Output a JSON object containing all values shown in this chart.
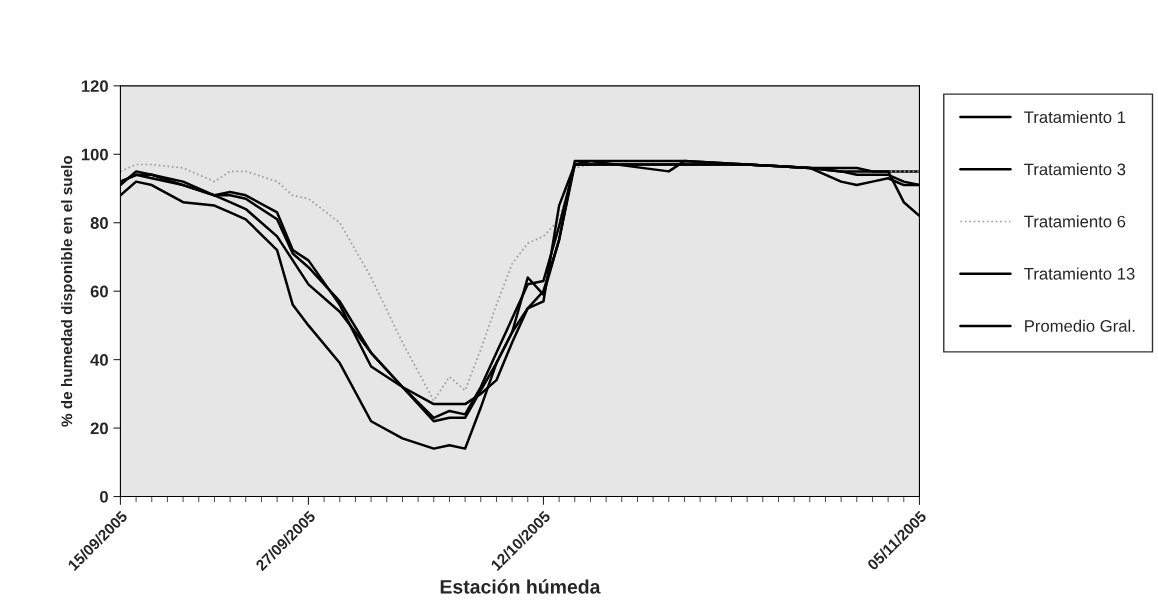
{
  "chart_data": {
    "type": "line",
    "xlabel": "Estación húmeda",
    "ylabel": "% de humedad disponible en el suelo",
    "x": [
      "2005-09-15",
      "2005-09-16",
      "2005-09-17",
      "2005-09-19",
      "2005-09-21",
      "2005-09-22",
      "2005-09-23",
      "2005-09-25",
      "2005-09-26",
      "2005-09-27",
      "2005-09-29",
      "2005-10-01",
      "2005-10-03",
      "2005-10-05",
      "2005-10-06",
      "2005-10-07",
      "2005-10-08",
      "2005-10-09",
      "2005-10-10",
      "2005-10-11",
      "2005-10-12",
      "2005-10-13",
      "2005-10-14",
      "2005-10-15",
      "2005-10-20",
      "2005-10-21",
      "2005-10-25",
      "2005-10-29",
      "2005-10-31",
      "2005-11-01",
      "2005-11-02",
      "2005-11-03",
      "2005-11-04",
      "2005-11-05"
    ],
    "series": [
      {
        "name": "Tratamiento 1",
        "color": "#000000",
        "line_style": "solid",
        "values": [
          91,
          95,
          94,
          92,
          88,
          89,
          88,
          83,
          72,
          69,
          56,
          38,
          32,
          27,
          27,
          27,
          30,
          34,
          45,
          55,
          60,
          75,
          97,
          98,
          98,
          98,
          97,
          96,
          95,
          95,
          95,
          95,
          95,
          95
        ]
      },
      {
        "name": "Tratamiento 3",
        "color": "#000000",
        "line_style": "solid",
        "values": [
          92,
          94,
          93,
          91,
          88,
          86,
          84,
          76,
          69,
          62,
          54,
          42,
          32,
          22,
          23,
          23,
          31,
          39,
          48,
          64,
          59,
          75,
          98,
          98,
          95,
          98,
          97,
          96,
          92,
          91,
          92,
          93,
          91,
          91
        ]
      },
      {
        "name": "Tratamiento 6",
        "color": "#9a9a9a",
        "line_style": "dotted",
        "values": [
          95,
          97,
          97,
          96,
          92,
          95,
          95,
          92,
          88,
          87,
          80,
          64,
          45,
          28,
          35,
          31,
          43,
          56,
          68,
          74,
          76,
          81,
          96,
          97,
          97,
          97,
          97,
          96,
          96,
          96,
          95,
          95,
          95,
          95
        ]
      },
      {
        "name": "Tratamiento 13",
        "color": "#000000",
        "line_style": "solid",
        "values": [
          88,
          92,
          91,
          86,
          85,
          83,
          81,
          72,
          56,
          50,
          39,
          22,
          17,
          14,
          15,
          14,
          26,
          39,
          48,
          55,
          57,
          85,
          97,
          97,
          97,
          97,
          97,
          96,
          96,
          96,
          95,
          95,
          86,
          82
        ]
      },
      {
        "name": "Promedio Gral.",
        "color": "#000000",
        "line_style": "solid",
        "values": [
          92,
          94,
          94,
          91,
          88,
          88,
          87,
          81,
          71,
          67,
          57,
          42,
          32,
          23,
          25,
          24,
          32,
          42,
          52,
          62,
          63,
          79,
          97,
          97,
          97,
          97,
          97,
          96,
          95,
          94,
          94,
          94,
          92,
          91
        ]
      }
    ],
    "xlim": [
      "2005-09-15",
      "2005-11-05"
    ],
    "xticks": [
      {
        "value": "2005-09-15",
        "label": "15/09/2005"
      },
      {
        "value": "2005-09-27",
        "label": "27/09/2005"
      },
      {
        "value": "2005-10-12",
        "label": "12/10/2005"
      },
      {
        "value": "2005-11-05",
        "label": "05/11/2005"
      }
    ],
    "ylim": [
      0,
      120
    ],
    "yticks": [
      0,
      20,
      40,
      60,
      80,
      100,
      120
    ],
    "grid": false,
    "legend": "right",
    "marker": "none"
  }
}
